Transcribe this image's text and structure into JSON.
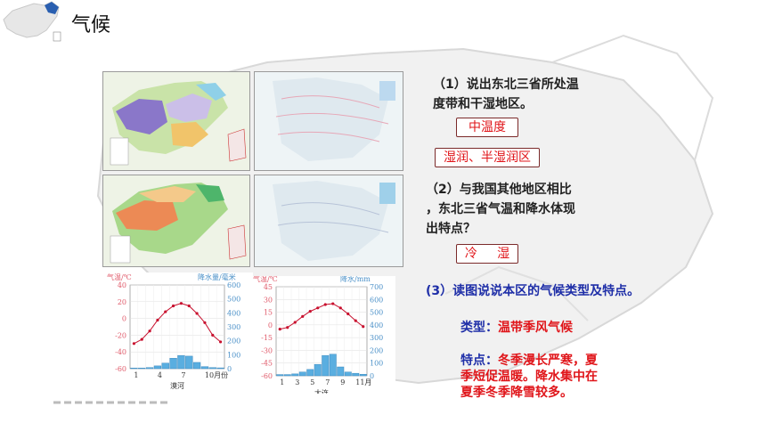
{
  "header": {
    "title": "气候"
  },
  "questions": {
    "q1": "（1）说出东北三省所处温度带和干湿地区。",
    "q1_line1": "（1）说出东北三省所处温",
    "q1_line2": "度带和干湿地区。",
    "a1_temp": "中温度",
    "a1_moist": "湿润、半湿润区",
    "q2_line1": "（2）与我国其他地区相比",
    "q2_line2": "，东北三省气温和降水体现",
    "q2_line3": "出特点？",
    "a2": "冷     湿",
    "q3": "(3）读图说说本区的气候类型及特点。",
    "type_label": "类型：",
    "type_value": "温带季风气候",
    "feat_label": "特点：",
    "feat_line1": "冬季漫长严寒，夏",
    "feat_line2": "季短促温暖。降水集中在",
    "feat_line3": "夏季冬季降雪较多。"
  },
  "colors": {
    "answer_text": "#e0151a",
    "question_blue": "#1f2fa8",
    "temp_curve": "#c8102e",
    "precip_bar": "#5aaee0"
  },
  "chart_data": [
    {
      "type": "bar",
      "title": "漠河",
      "categories": [
        "1",
        "2",
        "3",
        "4",
        "5",
        "6",
        "7",
        "8",
        "9",
        "10",
        "11",
        "12"
      ],
      "xlabel": "月份",
      "ylabel_left": "气温/℃",
      "ylabel_right": "降水量/毫米",
      "ylim_left": [
        -60,
        40
      ],
      "ylim_right": [
        0,
        600
      ],
      "left_ticks": [
        "40",
        "20",
        "0",
        "-20",
        "-40",
        "-60"
      ],
      "right_ticks": [
        "600",
        "500",
        "400",
        "300",
        "200",
        "100",
        "0"
      ],
      "x_ticks": [
        "1",
        "4",
        "7",
        "10月份"
      ],
      "series": [
        {
          "name": "气温",
          "kind": "line",
          "values": [
            -30,
            -25,
            -15,
            -2,
            8,
            15,
            18,
            15,
            6,
            -5,
            -20,
            -28
          ]
        },
        {
          "name": "降水量",
          "kind": "bar",
          "values": [
            5,
            5,
            8,
            20,
            40,
            75,
            95,
            90,
            45,
            15,
            8,
            6
          ]
        }
      ]
    },
    {
      "type": "bar",
      "title": "大连",
      "categories": [
        "1",
        "2",
        "3",
        "4",
        "5",
        "6",
        "7",
        "8",
        "9",
        "10",
        "11",
        "12"
      ],
      "xlabel": "",
      "ylabel_left": "气温/℃",
      "ylabel_right": "降水/mm",
      "ylim_left": [
        -60,
        45
      ],
      "ylim_right": [
        0,
        700
      ],
      "left_ticks": [
        "45",
        "30",
        "15",
        "0",
        "-15",
        "-30",
        "-45",
        "-60"
      ],
      "right_ticks": [
        "700",
        "600",
        "500",
        "400",
        "300",
        "200",
        "100",
        "0"
      ],
      "x_ticks": [
        "1",
        "3",
        "5",
        "7",
        "9",
        "11月"
      ],
      "series": [
        {
          "name": "气温",
          "kind": "line",
          "values": [
            -5,
            -3,
            3,
            10,
            16,
            20,
            24,
            25,
            20,
            13,
            5,
            -2
          ]
        },
        {
          "name": "降水",
          "kind": "bar",
          "values": [
            10,
            10,
            15,
            30,
            50,
            90,
            160,
            170,
            70,
            30,
            20,
            12
          ]
        }
      ]
    }
  ]
}
